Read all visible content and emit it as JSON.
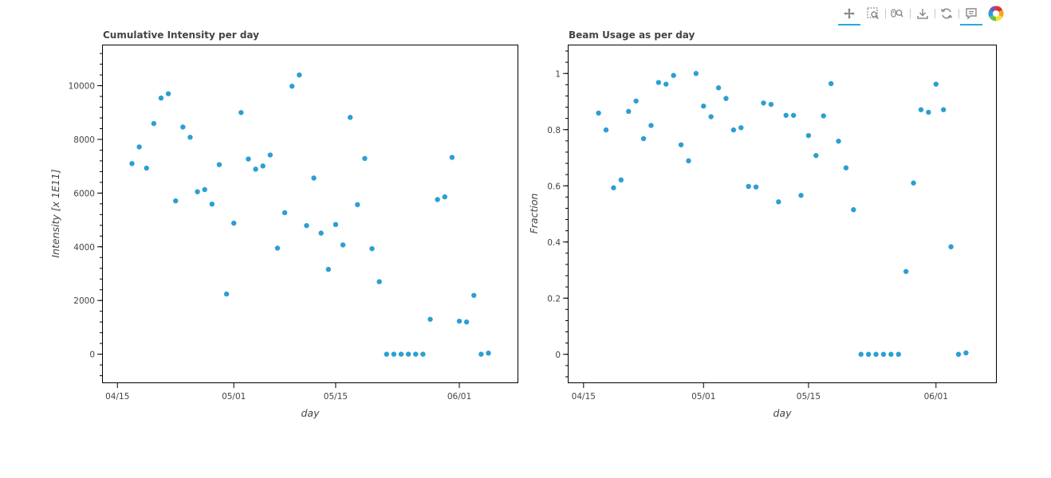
{
  "toolbar": {
    "tools": [
      {
        "name": "pan-tool",
        "icon": "pan-icon",
        "active": true
      },
      {
        "name": "box-zoom-tool",
        "icon": "box-zoom-icon",
        "active": false
      },
      {
        "name": "wheel-zoom-tool",
        "icon": "wheel-zoom-icon",
        "active": false
      },
      {
        "name": "save-tool",
        "icon": "save-icon",
        "active": false
      },
      {
        "name": "reset-tool",
        "icon": "reset-icon",
        "active": false
      },
      {
        "name": "hover-tool",
        "icon": "hover-icon",
        "active": true
      },
      {
        "name": "bokeh-logo",
        "icon": "bokeh-logo-icon",
        "active": false
      }
    ],
    "accent": "#26aae1"
  },
  "chart_data": [
    {
      "type": "scatter",
      "title": "Cumulative Intensity per day",
      "xlabel": "day",
      "ylabel": "Intensity [x 1E11]",
      "x_ticks": [
        "04/15",
        "05/01",
        "05/15",
        "06/01"
      ],
      "y_ticks": [
        0,
        2000,
        4000,
        6000,
        8000,
        10000
      ],
      "xlim": [
        "2023-04-13",
        "2023-06-09"
      ],
      "ylim": [
        -1050,
        11500
      ],
      "color": "#2b9fd3",
      "points": [
        {
          "x": "2023-04-17",
          "y": 7100
        },
        {
          "x": "2023-04-18",
          "y": 7720
        },
        {
          "x": "2023-04-19",
          "y": 6930
        },
        {
          "x": "2023-04-20",
          "y": 8590
        },
        {
          "x": "2023-04-21",
          "y": 9540
        },
        {
          "x": "2023-04-22",
          "y": 9700
        },
        {
          "x": "2023-04-23",
          "y": 5710
        },
        {
          "x": "2023-04-24",
          "y": 8460
        },
        {
          "x": "2023-04-25",
          "y": 8080
        },
        {
          "x": "2023-04-26",
          "y": 6050
        },
        {
          "x": "2023-04-27",
          "y": 6130
        },
        {
          "x": "2023-04-28",
          "y": 5590
        },
        {
          "x": "2023-04-29",
          "y": 7060
        },
        {
          "x": "2023-04-30",
          "y": 2240
        },
        {
          "x": "2023-05-01",
          "y": 4880
        },
        {
          "x": "2023-05-02",
          "y": 9000
        },
        {
          "x": "2023-05-03",
          "y": 7270
        },
        {
          "x": "2023-05-04",
          "y": 6890
        },
        {
          "x": "2023-05-05",
          "y": 7010
        },
        {
          "x": "2023-05-06",
          "y": 7420
        },
        {
          "x": "2023-05-07",
          "y": 3950
        },
        {
          "x": "2023-05-08",
          "y": 5270
        },
        {
          "x": "2023-05-09",
          "y": 9980
        },
        {
          "x": "2023-05-10",
          "y": 10400
        },
        {
          "x": "2023-05-11",
          "y": 4790
        },
        {
          "x": "2023-05-12",
          "y": 6560
        },
        {
          "x": "2023-05-13",
          "y": 4510
        },
        {
          "x": "2023-05-14",
          "y": 3160
        },
        {
          "x": "2023-05-15",
          "y": 4830
        },
        {
          "x": "2023-05-16",
          "y": 4070
        },
        {
          "x": "2023-05-17",
          "y": 8820
        },
        {
          "x": "2023-05-18",
          "y": 5570
        },
        {
          "x": "2023-05-19",
          "y": 7290
        },
        {
          "x": "2023-05-20",
          "y": 3930
        },
        {
          "x": "2023-05-21",
          "y": 2700
        },
        {
          "x": "2023-05-22",
          "y": 0
        },
        {
          "x": "2023-05-23",
          "y": 0
        },
        {
          "x": "2023-05-24",
          "y": 0
        },
        {
          "x": "2023-05-25",
          "y": 0
        },
        {
          "x": "2023-05-26",
          "y": 0
        },
        {
          "x": "2023-05-27",
          "y": 0
        },
        {
          "x": "2023-05-28",
          "y": 1300
        },
        {
          "x": "2023-05-29",
          "y": 5760
        },
        {
          "x": "2023-05-30",
          "y": 5860
        },
        {
          "x": "2023-05-31",
          "y": 7330
        },
        {
          "x": "2023-06-01",
          "y": 1230
        },
        {
          "x": "2023-06-02",
          "y": 1200
        },
        {
          "x": "2023-06-03",
          "y": 2190
        },
        {
          "x": "2023-06-04",
          "y": 0
        },
        {
          "x": "2023-06-05",
          "y": 40
        }
      ]
    },
    {
      "type": "scatter",
      "title": "Beam Usage as per day",
      "xlabel": "day",
      "ylabel": "Fraction",
      "x_ticks": [
        "04/15",
        "05/01",
        "05/15",
        "06/01"
      ],
      "y_ticks": [
        0,
        0.2,
        0.4,
        0.6,
        0.8,
        1
      ],
      "xlim": [
        "2023-04-13",
        "2023-06-09"
      ],
      "ylim": [
        -0.1,
        1.1
      ],
      "color": "#2b9fd3",
      "points": [
        {
          "x": "2023-04-17",
          "y": 0.859
        },
        {
          "x": "2023-04-18",
          "y": 0.799
        },
        {
          "x": "2023-04-19",
          "y": 0.593
        },
        {
          "x": "2023-04-20",
          "y": 0.621
        },
        {
          "x": "2023-04-21",
          "y": 0.865
        },
        {
          "x": "2023-04-22",
          "y": 0.902
        },
        {
          "x": "2023-04-23",
          "y": 0.768
        },
        {
          "x": "2023-04-24",
          "y": 0.815
        },
        {
          "x": "2023-04-25",
          "y": 0.968
        },
        {
          "x": "2023-04-26",
          "y": 0.962
        },
        {
          "x": "2023-04-27",
          "y": 0.993
        },
        {
          "x": "2023-04-28",
          "y": 0.746
        },
        {
          "x": "2023-04-29",
          "y": 0.689
        },
        {
          "x": "2023-04-30",
          "y": 1.0
        },
        {
          "x": "2023-05-01",
          "y": 0.884
        },
        {
          "x": "2023-05-02",
          "y": 0.846
        },
        {
          "x": "2023-05-03",
          "y": 0.949
        },
        {
          "x": "2023-05-04",
          "y": 0.911
        },
        {
          "x": "2023-05-05",
          "y": 0.799
        },
        {
          "x": "2023-05-06",
          "y": 0.807
        },
        {
          "x": "2023-05-07",
          "y": 0.598
        },
        {
          "x": "2023-05-08",
          "y": 0.596
        },
        {
          "x": "2023-05-09",
          "y": 0.895
        },
        {
          "x": "2023-05-10",
          "y": 0.89
        },
        {
          "x": "2023-05-11",
          "y": 0.543
        },
        {
          "x": "2023-05-12",
          "y": 0.851
        },
        {
          "x": "2023-05-13",
          "y": 0.851
        },
        {
          "x": "2023-05-14",
          "y": 0.566
        },
        {
          "x": "2023-05-15",
          "y": 0.779
        },
        {
          "x": "2023-05-16",
          "y": 0.708
        },
        {
          "x": "2023-05-17",
          "y": 0.849
        },
        {
          "x": "2023-05-18",
          "y": 0.964
        },
        {
          "x": "2023-05-19",
          "y": 0.759
        },
        {
          "x": "2023-05-20",
          "y": 0.664
        },
        {
          "x": "2023-05-21",
          "y": 0.515
        },
        {
          "x": "2023-05-22",
          "y": 0
        },
        {
          "x": "2023-05-23",
          "y": 0
        },
        {
          "x": "2023-05-24",
          "y": 0
        },
        {
          "x": "2023-05-25",
          "y": 0
        },
        {
          "x": "2023-05-26",
          "y": 0
        },
        {
          "x": "2023-05-27",
          "y": 0
        },
        {
          "x": "2023-05-28",
          "y": 0.295
        },
        {
          "x": "2023-05-29",
          "y": 0.61
        },
        {
          "x": "2023-05-30",
          "y": 0.871
        },
        {
          "x": "2023-05-31",
          "y": 0.862
        },
        {
          "x": "2023-06-01",
          "y": 0.962
        },
        {
          "x": "2023-06-02",
          "y": 0.871
        },
        {
          "x": "2023-06-03",
          "y": 0.383
        },
        {
          "x": "2023-06-04",
          "y": 0
        },
        {
          "x": "2023-06-05",
          "y": 0.005
        }
      ]
    }
  ]
}
